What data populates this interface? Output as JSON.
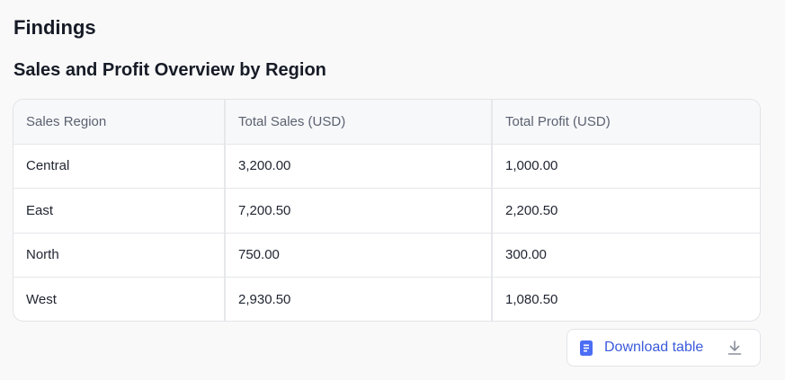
{
  "header": {
    "title": "Findings",
    "subtitle": "Sales and Profit Overview by Region"
  },
  "table": {
    "columns": [
      "Sales Region",
      "Total Sales (USD)",
      "Total Profit (USD)"
    ],
    "rows": [
      [
        "Central",
        "3,200.00",
        "1,000.00"
      ],
      [
        "East",
        "7,200.50",
        "2,200.50"
      ],
      [
        "North",
        "750.00",
        "300.00"
      ],
      [
        "West",
        "2,930.50",
        "1,080.50"
      ]
    ]
  },
  "actions": {
    "download_label": "Download table",
    "download_icon": "download-icon",
    "file_icon": "file-icon"
  },
  "colors": {
    "accent": "#3b5bdb",
    "file_icon": "#4c6ef5"
  }
}
